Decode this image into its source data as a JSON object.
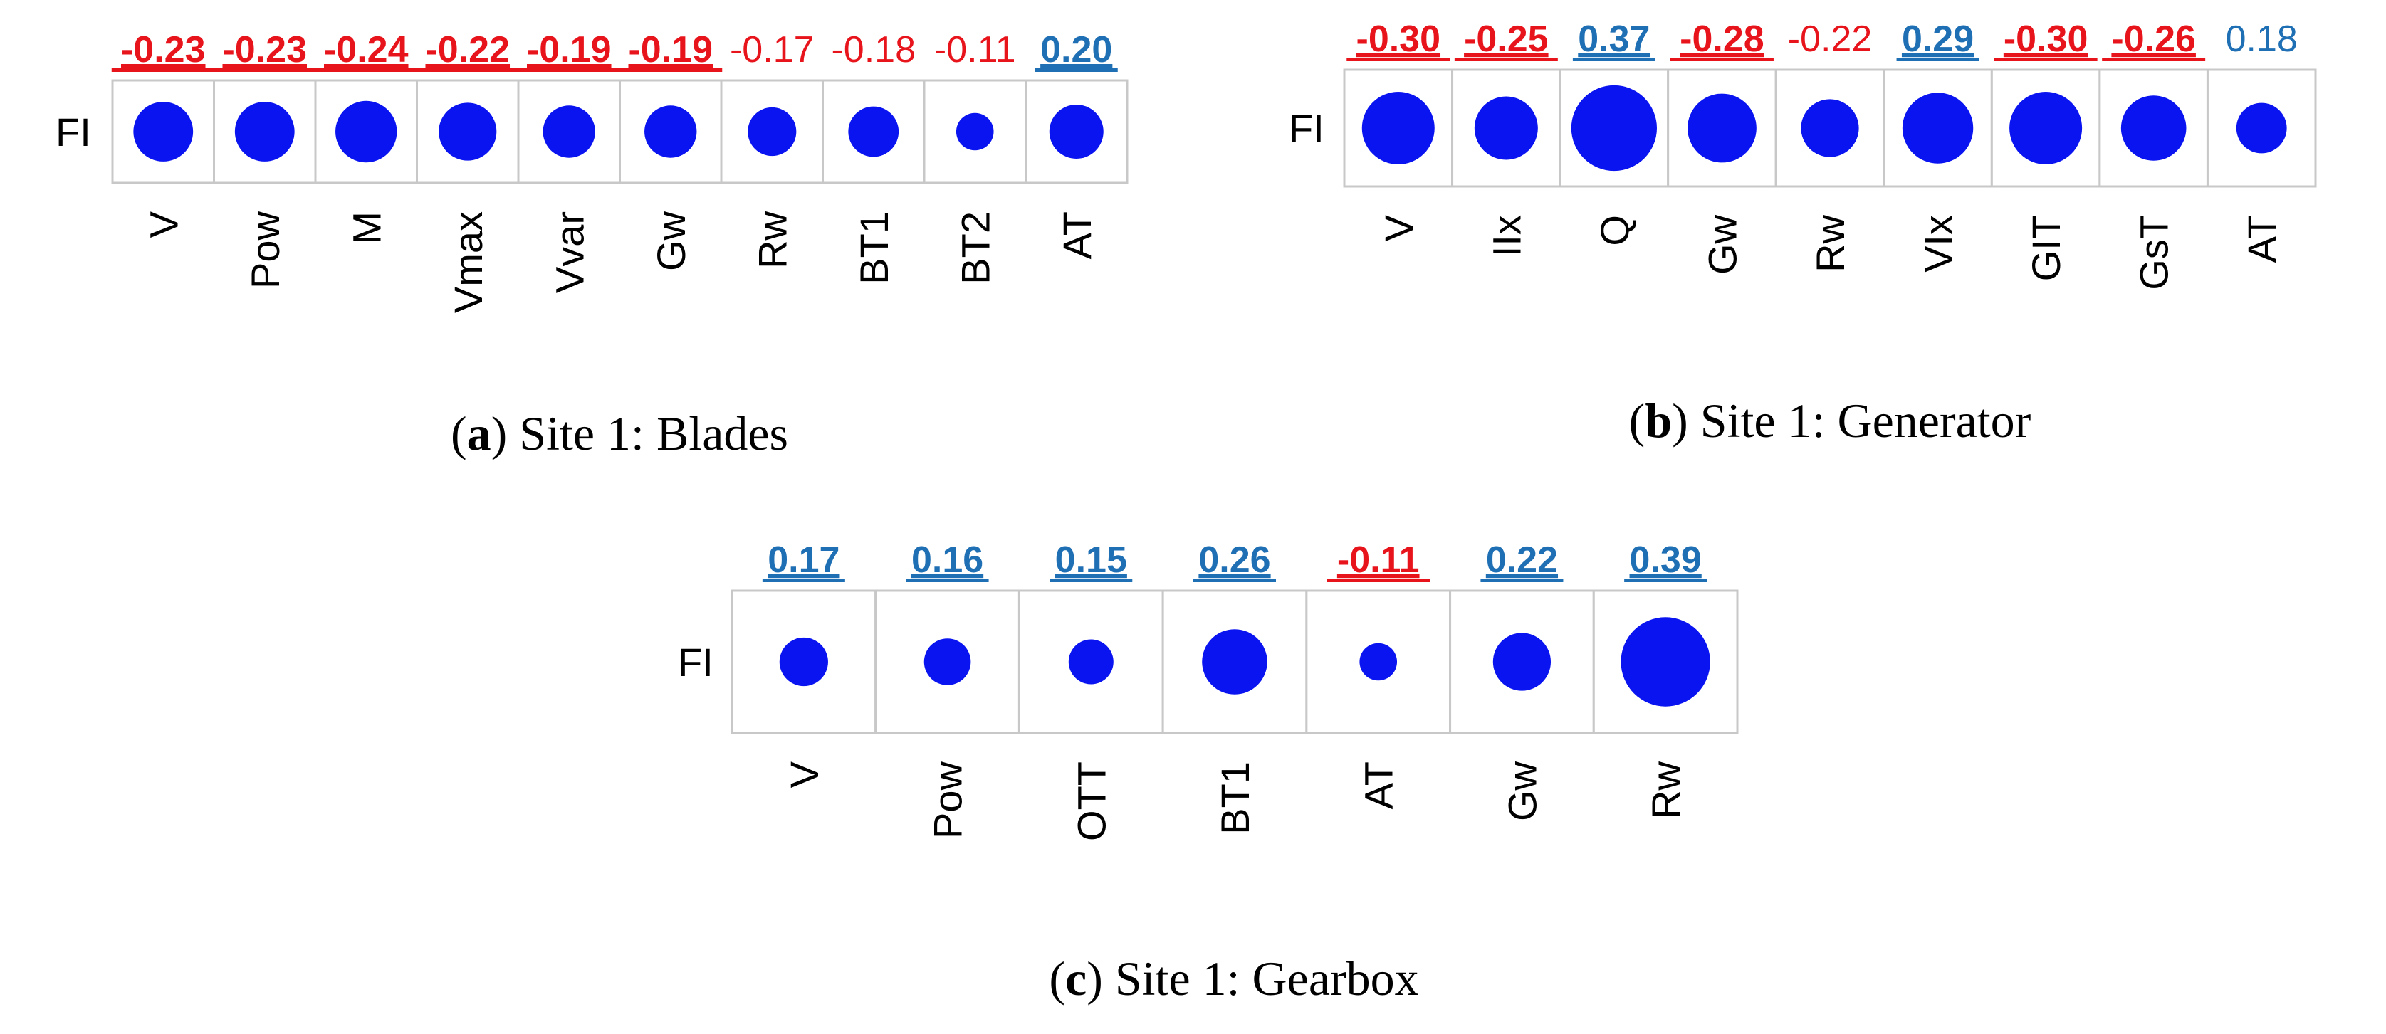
{
  "colors": {
    "negative": "#e8141c",
    "positive": "#1f6fb4",
    "dot": "#0a14f0"
  },
  "chart_data": [
    {
      "type": "correlation-dot-matrix",
      "title": "Site 1: Blades",
      "caption_letter": "a",
      "row_label": "FI",
      "variables": [
        "V",
        "Pow",
        "M",
        "Vmax",
        "Vvar",
        "Gw",
        "Rw",
        "BT1",
        "BT2",
        "AT"
      ],
      "values": [
        -0.23,
        -0.23,
        -0.24,
        -0.22,
        -0.19,
        -0.19,
        -0.17,
        -0.18,
        -0.11,
        0.2
      ],
      "labels": [
        "-0.23",
        "-0.23",
        "-0.24",
        "-0.22",
        "-0.19",
        "-0.19",
        "-0.17",
        "-0.18",
        "-0.11",
        "0.20"
      ],
      "significant": [
        true,
        true,
        true,
        true,
        true,
        true,
        false,
        false,
        false,
        true
      ]
    },
    {
      "type": "correlation-dot-matrix",
      "title": "Site 1: Generator",
      "caption_letter": "b",
      "row_label": "FI",
      "variables": [
        "V",
        "IIx",
        "Q",
        "Gw",
        "Rw",
        "VIx",
        "GIT",
        "GsT",
        "AT"
      ],
      "values": [
        -0.3,
        -0.25,
        0.37,
        -0.28,
        -0.22,
        0.29,
        -0.3,
        -0.26,
        0.18
      ],
      "labels": [
        "-0.30",
        "-0.25",
        "0.37",
        "-0.28",
        "-0.22",
        "0.29",
        "-0.30",
        "-0.26",
        "0.18"
      ],
      "significant": [
        true,
        true,
        true,
        true,
        false,
        true,
        true,
        true,
        false
      ]
    },
    {
      "type": "correlation-dot-matrix",
      "title": "Site 1: Gearbox",
      "caption_letter": "c",
      "row_label": "FI",
      "variables": [
        "V",
        "Pow",
        "OTT",
        "BT1",
        "AT",
        "Gw",
        "Rw"
      ],
      "values": [
        0.17,
        0.16,
        0.15,
        0.26,
        -0.11,
        0.22,
        0.39
      ],
      "labels": [
        "0.17",
        "0.16",
        "0.15",
        "0.26",
        "-0.11",
        "0.22",
        "0.39"
      ],
      "significant": [
        true,
        true,
        true,
        true,
        true,
        true,
        true
      ]
    }
  ]
}
